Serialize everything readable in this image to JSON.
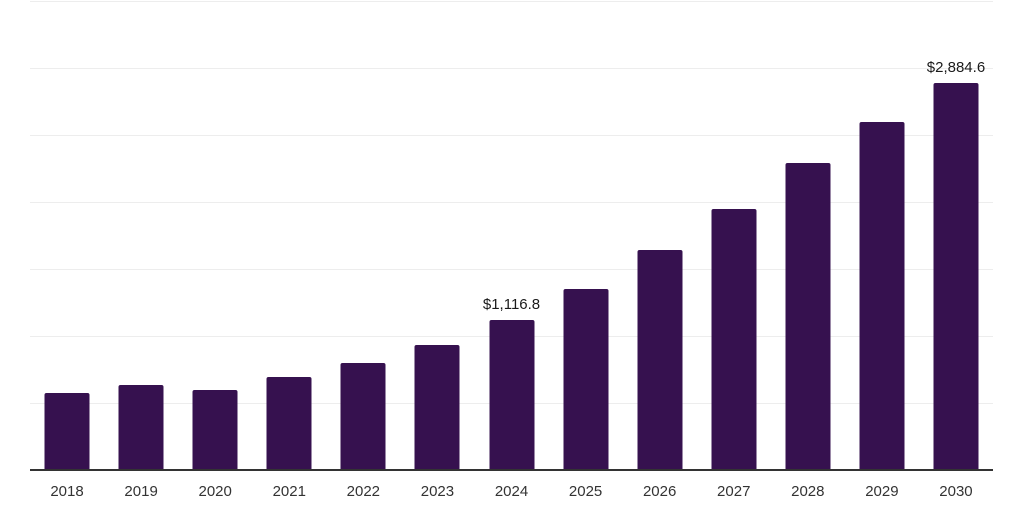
{
  "chart_data": {
    "type": "bar",
    "title": "",
    "xlabel": "",
    "ylabel": "",
    "categories": [
      "2018",
      "2019",
      "2020",
      "2021",
      "2022",
      "2023",
      "2024",
      "2025",
      "2026",
      "2027",
      "2028",
      "2029",
      "2030"
    ],
    "values": [
      578,
      634,
      600,
      694,
      797,
      932,
      1116.8,
      1350,
      1640,
      1950,
      2290,
      2595,
      2884.6
    ],
    "bar_labels": [
      "",
      "",
      "",
      "",
      "",
      "",
      "$1,116.8",
      "",
      "",
      "",
      "",
      "",
      "$2,884.6"
    ],
    "ylim": [
      0,
      3500
    ],
    "gridline_interval": 500,
    "grid": "horizontal-only",
    "legend": "none",
    "y_axis_tick_labels_visible": false,
    "colors": {
      "bar": "#36114F",
      "axis_line": "#333333",
      "gridline": "#ededed",
      "tick_label": "#333333",
      "data_label": "#1a1a1a",
      "background": "#ffffff"
    }
  }
}
